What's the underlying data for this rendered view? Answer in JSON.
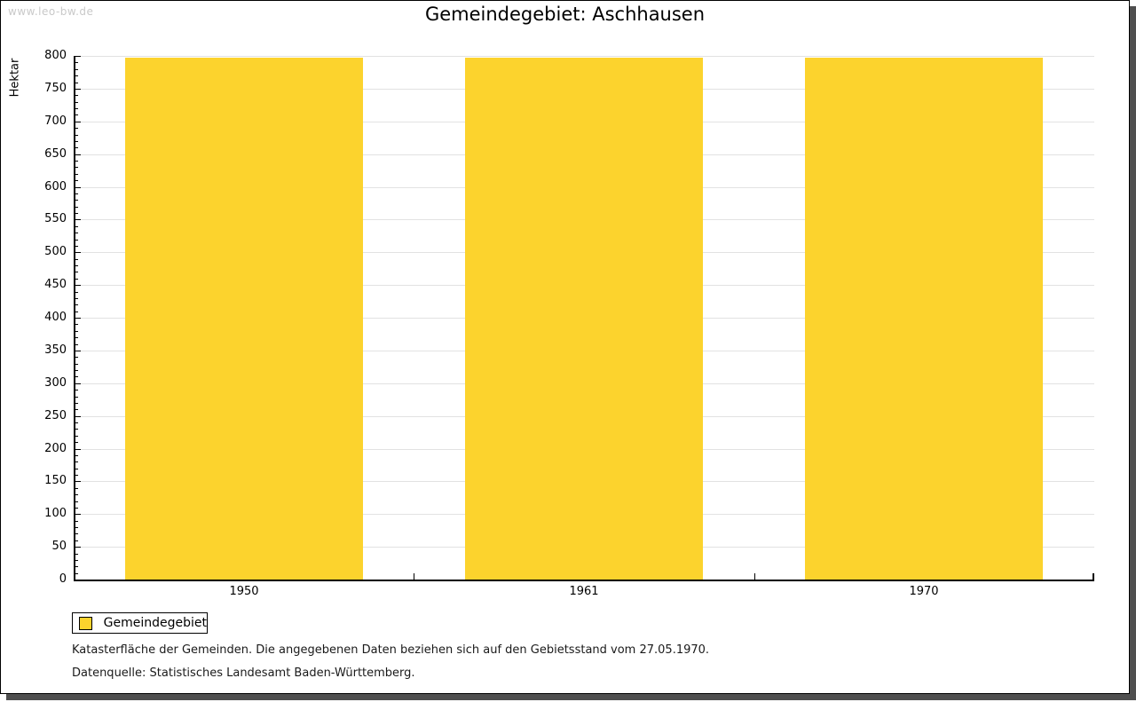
{
  "watermark": "www.leo-bw.de",
  "footer": {
    "line1": "Katasterfläche der Gemeinden. Die angegebenen Daten beziehen sich auf den Gebietsstand vom 27.05.1970.",
    "line2": "Datenquelle: Statistisches Landesamt Baden-Württemberg."
  },
  "colors": {
    "bar": "#fcd32d",
    "grid": "#e2e2e2",
    "axis": "#000000",
    "shadow": "#4f4f4f",
    "watermark": "#c9c9c9"
  },
  "chart_data": {
    "type": "bar",
    "title": "Gemeindegebiet: Aschhausen",
    "categories": [
      "1950",
      "1961",
      "1970"
    ],
    "series": [
      {
        "name": "Gemeindegebiet",
        "values": [
          797,
          797,
          797
        ]
      }
    ],
    "xlabel": "",
    "ylabel": "Hektar",
    "ylim": [
      0,
      800
    ],
    "ytick_step": 50,
    "yminor_step": 10,
    "grid": "horizontal-major",
    "legend_position": "bottom-left",
    "bar_color": "#fcd32d"
  }
}
